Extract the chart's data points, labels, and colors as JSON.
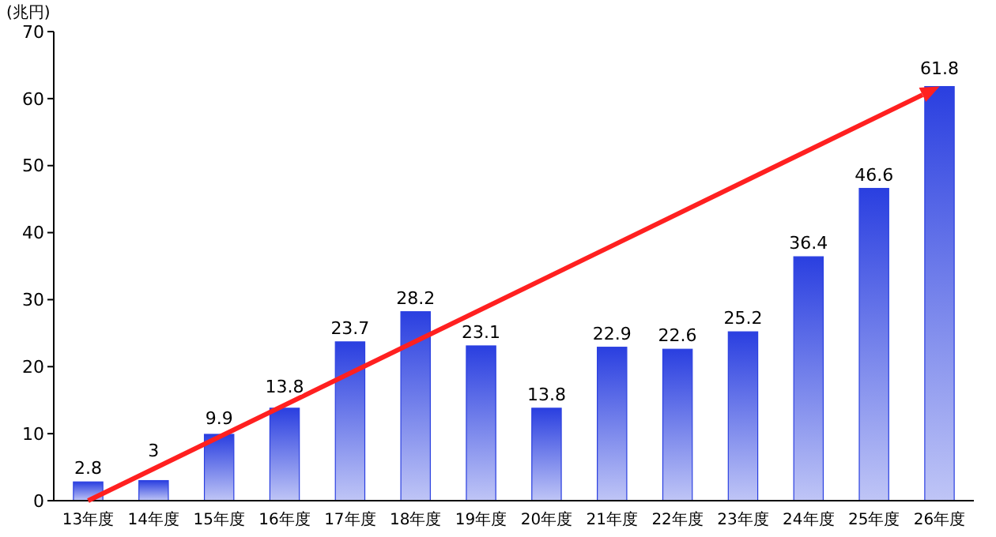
{
  "chart_data": {
    "type": "bar",
    "ylabel": "(兆円)",
    "categories": [
      "13年度",
      "14年度",
      "15年度",
      "16年度",
      "17年度",
      "18年度",
      "19年度",
      "20年度",
      "21年度",
      "22年度",
      "23年度",
      "24年度",
      "25年度",
      "26年度"
    ],
    "values": [
      2.8,
      3,
      9.9,
      13.8,
      23.7,
      28.2,
      23.1,
      13.8,
      22.9,
      22.6,
      25.2,
      36.4,
      46.6,
      61.8
    ],
    "color": "#2a3fe0",
    "ylim": [
      0,
      70
    ],
    "yticks": [
      0,
      10,
      20,
      30,
      40,
      50,
      60,
      70
    ],
    "data_labels": true,
    "grid": false
  }
}
